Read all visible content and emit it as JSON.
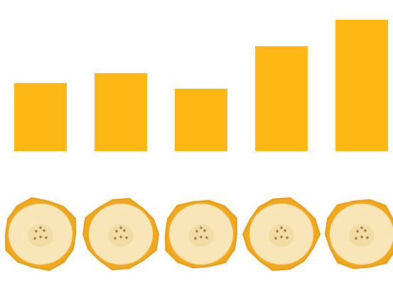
{
  "chart_data": {
    "type": "bar",
    "categories": [
      "",
      "",
      "",
      "",
      ""
    ],
    "values": [
      96,
      110,
      88,
      148,
      185
    ],
    "ylim": [
      0,
      185
    ],
    "grid": false,
    "legend": "none",
    "bar_color": "#FDB714",
    "pictogram": {
      "icon": "banana-slice-icon",
      "count": 5,
      "peel_color": "#F2A81D",
      "flesh_color": "#F9E6B8",
      "seed_color": "#8A6A3A"
    }
  }
}
